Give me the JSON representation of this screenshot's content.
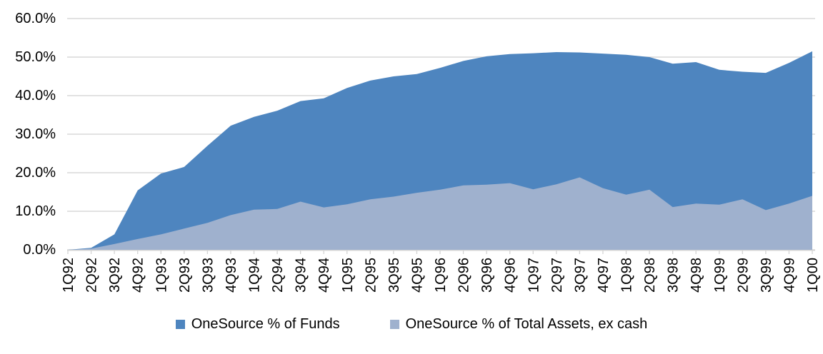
{
  "chart_data": {
    "type": "area",
    "title": "",
    "xlabel": "",
    "ylabel": "",
    "ylim": [
      0,
      60
    ],
    "grid": "horizontal",
    "legend_position": "bottom",
    "y_tick_labels": [
      "0.0%",
      "10.0%",
      "20.0%",
      "30.0%",
      "40.0%",
      "50.0%",
      "60.0%"
    ],
    "y_tick_values": [
      0,
      10,
      20,
      30,
      40,
      50,
      60
    ],
    "x_labels": [
      "1Q92",
      "2Q92",
      "3Q92",
      "4Q92",
      "1Q93",
      "2Q93",
      "3Q93",
      "4Q93",
      "1Q94",
      "2Q94",
      "3Q94",
      "4Q94",
      "1Q95",
      "2Q95",
      "3Q95",
      "4Q95",
      "1Q96",
      "2Q96",
      "3Q96",
      "4Q96",
      "1Q97",
      "2Q97",
      "3Q97",
      "4Q97",
      "1Q98",
      "2Q98",
      "3Q98",
      "4Q98",
      "1Q99",
      "2Q99",
      "3Q99",
      "4Q99",
      "1Q00"
    ],
    "series": [
      {
        "name": "OneSource % of Funds",
        "color": "#4E85BF",
        "values": [
          0.0,
          0.5,
          4.0,
          15.4,
          19.8,
          21.5,
          27.0,
          32.2,
          34.5,
          36.1,
          38.6,
          39.3,
          42.0,
          43.9,
          45.0,
          45.6,
          47.2,
          49.0,
          50.2,
          50.8,
          51.0,
          51.3,
          51.2,
          50.9,
          50.6,
          50.0,
          48.3,
          48.7,
          46.7,
          46.2,
          45.9,
          48.5,
          51.5
        ]
      },
      {
        "name": "OneSource % of Total Assets, ex cash",
        "color": "#9FB1CE",
        "values": [
          0.0,
          0.3,
          1.5,
          2.8,
          4.0,
          5.5,
          7.0,
          9.0,
          10.4,
          10.6,
          12.5,
          11.0,
          11.8,
          13.1,
          13.8,
          14.8,
          15.6,
          16.7,
          16.9,
          17.3,
          15.7,
          17.0,
          18.8,
          16.0,
          14.3,
          15.6,
          11.1,
          12.0,
          11.7,
          13.1,
          10.3,
          12.0,
          14.0
        ]
      }
    ],
    "colors": {
      "gridline": "#D9D9D9",
      "axis": "#D4D4D4",
      "text": "#000000",
      "background": "#FFFFFF"
    }
  }
}
